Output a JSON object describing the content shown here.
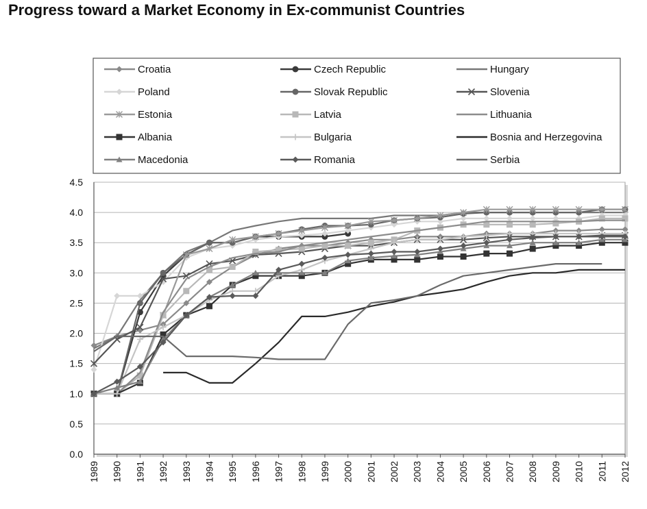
{
  "chart_data": {
    "type": "line",
    "title": "Progress toward a Market Economy in Ex-communist Countries",
    "xlabel": "",
    "ylabel": "",
    "x": [
      1989,
      1990,
      1991,
      1992,
      1993,
      1994,
      1995,
      1996,
      1997,
      1998,
      1999,
      2000,
      2001,
      2002,
      2003,
      2004,
      2005,
      2006,
      2007,
      2008,
      2009,
      2010,
      2011,
      2012
    ],
    "ylim": [
      0,
      4.5
    ],
    "yticks": [
      "0.0",
      "0.5",
      "1.0",
      "1.5",
      "2.0",
      "2.5",
      "3.0",
      "3.5",
      "4.0",
      "4.5"
    ],
    "grid": "horizontal",
    "legend_position": "top",
    "series": [
      {
        "name": "Croatia",
        "color": "#8a8a8a",
        "marker": "diamond",
        "values": [
          1.8,
          1.95,
          2.05,
          2.15,
          2.5,
          2.85,
          3.1,
          3.3,
          3.4,
          3.45,
          3.45,
          3.5,
          3.55,
          3.55,
          3.6,
          3.6,
          3.6,
          3.65,
          3.65,
          3.65,
          3.7,
          3.7,
          3.72,
          3.72
        ]
      },
      {
        "name": "Czech Republic",
        "color": "#3a3a3a",
        "marker": "circle",
        "values": [
          1.0,
          1.0,
          2.35,
          2.95,
          3.3,
          3.5,
          3.5,
          3.6,
          3.6,
          3.6,
          3.6,
          3.65,
          null,
          null,
          null,
          null,
          null,
          null,
          null,
          null,
          null,
          null,
          null,
          null
        ]
      },
      {
        "name": "Hungary",
        "color": "#777777",
        "marker": "none",
        "values": [
          1.75,
          1.95,
          2.55,
          3.0,
          3.35,
          3.5,
          3.7,
          3.78,
          3.85,
          3.9,
          3.9,
          3.9,
          3.9,
          3.95,
          3.95,
          3.95,
          4.0,
          4.0,
          4.0,
          4.0,
          4.0,
          4.0,
          4.0,
          4.0
        ]
      },
      {
        "name": "Poland",
        "color": "#d6d6d6",
        "marker": "diamond",
        "values": [
          1.4,
          2.62,
          2.62,
          2.85,
          3.25,
          3.4,
          3.45,
          3.55,
          3.6,
          3.62,
          3.65,
          3.7,
          3.75,
          3.8,
          3.85,
          3.85,
          3.9,
          3.9,
          3.9,
          3.9,
          3.9,
          3.9,
          3.95,
          3.95
        ]
      },
      {
        "name": "Slovak Republic",
        "color": "#666666",
        "marker": "circle",
        "values": [
          1.0,
          1.0,
          2.5,
          3.0,
          3.3,
          3.5,
          3.5,
          3.6,
          3.65,
          3.72,
          3.78,
          3.78,
          3.8,
          3.87,
          3.9,
          3.92,
          3.98,
          4.0,
          4.0,
          4.0,
          4.0,
          4.0,
          4.05,
          4.05
        ]
      },
      {
        "name": "Slovenia",
        "color": "#555555",
        "marker": "x",
        "values": [
          1.5,
          1.9,
          2.1,
          2.9,
          2.95,
          3.15,
          3.2,
          3.3,
          3.32,
          3.35,
          3.4,
          3.45,
          3.45,
          3.5,
          3.55,
          3.55,
          3.55,
          3.58,
          3.6,
          3.6,
          3.6,
          3.6,
          3.62,
          3.62
        ]
      },
      {
        "name": "Estonia",
        "color": "#9a9a9a",
        "marker": "asterisk",
        "values": [
          1.0,
          1.0,
          1.3,
          2.3,
          3.3,
          3.4,
          3.55,
          3.6,
          3.65,
          3.7,
          3.75,
          3.78,
          3.85,
          3.87,
          3.9,
          3.95,
          4.0,
          4.05,
          4.05,
          4.05,
          4.05,
          4.05,
          4.05,
          4.05
        ]
      },
      {
        "name": "Latvia",
        "color": "#b8b8b8",
        "marker": "square",
        "values": [
          1.0,
          1.0,
          1.3,
          2.3,
          2.7,
          3.05,
          3.1,
          3.35,
          3.38,
          3.4,
          3.45,
          3.45,
          3.5,
          3.55,
          3.7,
          3.75,
          3.8,
          3.8,
          3.8,
          3.8,
          3.82,
          3.85,
          3.9,
          3.9
        ]
      },
      {
        "name": "Lithuania",
        "color": "#8c8c8c",
        "marker": "none",
        "values": [
          1.0,
          1.0,
          1.35,
          2.35,
          2.9,
          3.1,
          3.25,
          3.32,
          3.35,
          3.45,
          3.5,
          3.55,
          3.6,
          3.65,
          3.7,
          3.75,
          3.8,
          3.85,
          3.85,
          3.85,
          3.85,
          3.85,
          3.87,
          3.87
        ]
      },
      {
        "name": "Albania",
        "color": "#333333",
        "marker": "square",
        "values": [
          1.0,
          1.0,
          1.18,
          1.98,
          2.3,
          2.45,
          2.8,
          2.95,
          2.95,
          2.95,
          3.0,
          3.15,
          3.22,
          3.22,
          3.22,
          3.27,
          3.27,
          3.32,
          3.32,
          3.4,
          3.45,
          3.45,
          3.5,
          3.5
        ]
      },
      {
        "name": "Bulgaria",
        "color": "#c4c4c4",
        "marker": "plus",
        "values": [
          1.0,
          1.0,
          1.9,
          2.1,
          2.3,
          2.55,
          2.7,
          2.7,
          2.95,
          3.05,
          3.2,
          3.3,
          3.4,
          3.5,
          3.55,
          3.55,
          3.6,
          3.62,
          3.65,
          3.65,
          3.65,
          3.65,
          3.65,
          3.65
        ]
      },
      {
        "name": "Bosnia and Herzegovina",
        "color": "#2a2a2a",
        "marker": "none",
        "values": [
          null,
          null,
          null,
          1.35,
          1.35,
          1.18,
          1.18,
          1.5,
          1.85,
          2.28,
          2.28,
          2.35,
          2.45,
          2.52,
          2.62,
          2.67,
          2.73,
          2.85,
          2.95,
          3.0,
          3.0,
          3.05,
          3.05,
          3.05
        ]
      },
      {
        "name": "Macedonia",
        "color": "#808080",
        "marker": "triangle",
        "values": [
          1.0,
          1.1,
          1.2,
          1.9,
          2.3,
          2.6,
          2.8,
          3.0,
          3.0,
          3.0,
          3.0,
          3.2,
          3.25,
          3.28,
          3.3,
          3.35,
          3.4,
          3.45,
          3.45,
          3.5,
          3.5,
          3.5,
          3.55,
          3.55
        ]
      },
      {
        "name": "Romania",
        "color": "#5a5a5a",
        "marker": "diamond",
        "values": [
          1.0,
          1.2,
          1.45,
          1.85,
          2.3,
          2.6,
          2.62,
          2.62,
          3.05,
          3.15,
          3.25,
          3.3,
          3.32,
          3.35,
          3.35,
          3.4,
          3.45,
          3.5,
          3.55,
          3.58,
          3.6,
          3.6,
          3.6,
          3.6
        ]
      },
      {
        "name": "Serbia",
        "color": "#6a6a6a",
        "marker": "none",
        "values": [
          1.7,
          1.95,
          1.95,
          1.95,
          1.62,
          1.62,
          1.62,
          1.6,
          1.57,
          1.57,
          1.57,
          2.15,
          2.5,
          2.55,
          2.62,
          2.8,
          2.95,
          3.0,
          3.05,
          3.1,
          3.15,
          3.15,
          3.15,
          null
        ]
      }
    ]
  }
}
